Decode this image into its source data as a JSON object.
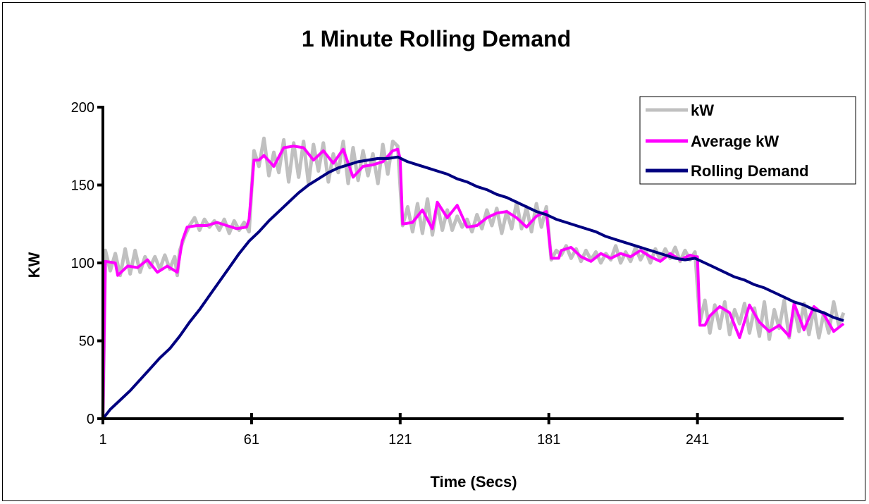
{
  "chart_data": {
    "type": "line",
    "title": "1 Minute Rolling Demand",
    "xlabel": "Time (Secs)",
    "ylabel": "KW",
    "xlim": [
      1,
      300
    ],
    "ylim": [
      0,
      200
    ],
    "x_ticks": [
      1,
      61,
      121,
      181,
      241
    ],
    "y_ticks": [
      0,
      50,
      100,
      150,
      200
    ],
    "grid": false,
    "legend_position": "top-right",
    "series": [
      {
        "name": "kW",
        "color": "#c0c0c0",
        "points": [
          [
            1,
            0
          ],
          [
            2,
            108
          ],
          [
            4,
            95
          ],
          [
            6,
            106
          ],
          [
            8,
            92
          ],
          [
            10,
            109
          ],
          [
            12,
            93
          ],
          [
            14,
            108
          ],
          [
            16,
            94
          ],
          [
            18,
            104
          ],
          [
            20,
            97
          ],
          [
            22,
            104
          ],
          [
            24,
            96
          ],
          [
            26,
            105
          ],
          [
            28,
            96
          ],
          [
            30,
            104
          ],
          [
            31,
            92
          ],
          [
            32,
            108
          ],
          [
            34,
            117
          ],
          [
            36,
            124
          ],
          [
            38,
            129
          ],
          [
            40,
            121
          ],
          [
            42,
            128
          ],
          [
            44,
            123
          ],
          [
            46,
            127
          ],
          [
            48,
            121
          ],
          [
            50,
            128
          ],
          [
            52,
            119
          ],
          [
            54,
            127
          ],
          [
            56,
            121
          ],
          [
            58,
            126
          ],
          [
            60,
            120
          ],
          [
            62,
            172
          ],
          [
            64,
            162
          ],
          [
            66,
            180
          ],
          [
            68,
            156
          ],
          [
            70,
            171
          ],
          [
            72,
            158
          ],
          [
            74,
            179
          ],
          [
            76,
            152
          ],
          [
            78,
            177
          ],
          [
            80,
            155
          ],
          [
            82,
            178
          ],
          [
            84,
            151
          ],
          [
            86,
            176
          ],
          [
            88,
            159
          ],
          [
            90,
            177
          ],
          [
            92,
            152
          ],
          [
            94,
            170
          ],
          [
            96,
            158
          ],
          [
            98,
            178
          ],
          [
            100,
            151
          ],
          [
            102,
            174
          ],
          [
            104,
            153
          ],
          [
            106,
            172
          ],
          [
            108,
            156
          ],
          [
            110,
            170
          ],
          [
            112,
            151
          ],
          [
            114,
            176
          ],
          [
            116,
            157
          ],
          [
            118,
            178
          ],
          [
            120,
            175
          ],
          [
            122,
            124
          ],
          [
            124,
            136
          ],
          [
            126,
            120
          ],
          [
            128,
            138
          ],
          [
            130,
            119
          ],
          [
            132,
            141
          ],
          [
            134,
            118
          ],
          [
            136,
            138
          ],
          [
            138,
            121
          ],
          [
            140,
            134
          ],
          [
            142,
            121
          ],
          [
            144,
            130
          ],
          [
            146,
            123
          ],
          [
            148,
            128
          ],
          [
            150,
            120
          ],
          [
            152,
            131
          ],
          [
            154,
            122
          ],
          [
            156,
            134
          ],
          [
            158,
            124
          ],
          [
            160,
            135
          ],
          [
            162,
            119
          ],
          [
            164,
            133
          ],
          [
            166,
            122
          ],
          [
            168,
            139
          ],
          [
            170,
            122
          ],
          [
            172,
            136
          ],
          [
            174,
            120
          ],
          [
            176,
            138
          ],
          [
            178,
            123
          ],
          [
            180,
            136
          ],
          [
            182,
            102
          ],
          [
            184,
            108
          ],
          [
            186,
            105
          ],
          [
            188,
            111
          ],
          [
            190,
            103
          ],
          [
            192,
            109
          ],
          [
            194,
            101
          ],
          [
            196,
            108
          ],
          [
            198,
            102
          ],
          [
            200,
            107
          ],
          [
            202,
            100
          ],
          [
            204,
            106
          ],
          [
            206,
            102
          ],
          [
            208,
            111
          ],
          [
            210,
            100
          ],
          [
            212,
            107
          ],
          [
            214,
            101
          ],
          [
            216,
            110
          ],
          [
            218,
            102
          ],
          [
            220,
            108
          ],
          [
            222,
            100
          ],
          [
            224,
            109
          ],
          [
            226,
            102
          ],
          [
            228,
            109
          ],
          [
            230,
            103
          ],
          [
            232,
            110
          ],
          [
            234,
            101
          ],
          [
            236,
            108
          ],
          [
            238,
            102
          ],
          [
            240,
            107
          ],
          [
            242,
            62
          ],
          [
            244,
            76
          ],
          [
            246,
            55
          ],
          [
            248,
            73
          ],
          [
            250,
            58
          ],
          [
            252,
            75
          ],
          [
            254,
            54
          ],
          [
            256,
            70
          ],
          [
            258,
            61
          ],
          [
            260,
            74
          ],
          [
            262,
            55
          ],
          [
            264,
            71
          ],
          [
            266,
            53
          ],
          [
            268,
            75
          ],
          [
            270,
            51
          ],
          [
            272,
            70
          ],
          [
            274,
            58
          ],
          [
            276,
            76
          ],
          [
            278,
            52
          ],
          [
            280,
            72
          ],
          [
            282,
            56
          ],
          [
            284,
            74
          ],
          [
            286,
            54
          ],
          [
            288,
            71
          ],
          [
            290,
            52
          ],
          [
            292,
            68
          ],
          [
            294,
            55
          ],
          [
            296,
            75
          ],
          [
            298,
            60
          ],
          [
            300,
            68
          ]
        ]
      },
      {
        "name": "Average kW",
        "color": "#ff00ff",
        "points": [
          [
            1,
            0
          ],
          [
            2,
            101
          ],
          [
            6,
            100
          ],
          [
            7,
            92
          ],
          [
            11,
            98
          ],
          [
            15,
            97
          ],
          [
            19,
            102
          ],
          [
            23,
            94
          ],
          [
            27,
            98
          ],
          [
            31,
            94
          ],
          [
            33,
            114
          ],
          [
            35,
            123
          ],
          [
            39,
            124
          ],
          [
            43,
            124
          ],
          [
            47,
            126
          ],
          [
            51,
            124
          ],
          [
            55,
            122
          ],
          [
            59,
            123
          ],
          [
            60,
            128
          ],
          [
            62,
            166
          ],
          [
            64,
            166
          ],
          [
            66,
            169
          ],
          [
            70,
            162
          ],
          [
            74,
            174
          ],
          [
            78,
            175
          ],
          [
            82,
            174
          ],
          [
            86,
            166
          ],
          [
            90,
            172
          ],
          [
            94,
            164
          ],
          [
            98,
            173
          ],
          [
            102,
            155
          ],
          [
            106,
            162
          ],
          [
            110,
            163
          ],
          [
            114,
            165
          ],
          [
            118,
            172
          ],
          [
            120,
            173
          ],
          [
            121,
            167
          ],
          [
            122,
            125
          ],
          [
            126,
            126
          ],
          [
            130,
            134
          ],
          [
            134,
            122
          ],
          [
            136,
            139
          ],
          [
            140,
            129
          ],
          [
            144,
            137
          ],
          [
            148,
            123
          ],
          [
            152,
            124
          ],
          [
            156,
            129
          ],
          [
            160,
            132
          ],
          [
            164,
            133
          ],
          [
            168,
            129
          ],
          [
            172,
            123
          ],
          [
            176,
            130
          ],
          [
            180,
            133
          ],
          [
            182,
            103
          ],
          [
            185,
            103
          ],
          [
            186,
            108
          ],
          [
            190,
            110
          ],
          [
            194,
            104
          ],
          [
            198,
            101
          ],
          [
            202,
            106
          ],
          [
            206,
            103
          ],
          [
            210,
            106
          ],
          [
            214,
            104
          ],
          [
            218,
            108
          ],
          [
            222,
            104
          ],
          [
            226,
            101
          ],
          [
            230,
            106
          ],
          [
            234,
            102
          ],
          [
            238,
            105
          ],
          [
            240,
            104
          ],
          [
            241,
            104
          ],
          [
            242,
            60
          ],
          [
            244,
            60
          ],
          [
            246,
            66
          ],
          [
            250,
            72
          ],
          [
            254,
            68
          ],
          [
            258,
            52
          ],
          [
            262,
            73
          ],
          [
            266,
            62
          ],
          [
            270,
            56
          ],
          [
            274,
            60
          ],
          [
            278,
            53
          ],
          [
            280,
            74
          ],
          [
            284,
            57
          ],
          [
            288,
            72
          ],
          [
            292,
            67
          ],
          [
            296,
            56
          ],
          [
            300,
            61
          ]
        ]
      },
      {
        "name": "Rolling Demand",
        "color": "#000080",
        "points": [
          [
            1,
            0
          ],
          [
            2,
            2
          ],
          [
            4,
            6
          ],
          [
            8,
            12
          ],
          [
            12,
            18
          ],
          [
            16,
            25
          ],
          [
            20,
            32
          ],
          [
            24,
            39
          ],
          [
            28,
            45
          ],
          [
            32,
            53
          ],
          [
            36,
            62
          ],
          [
            40,
            70
          ],
          [
            44,
            79
          ],
          [
            48,
            88
          ],
          [
            52,
            97
          ],
          [
            56,
            106
          ],
          [
            60,
            114
          ],
          [
            64,
            120
          ],
          [
            68,
            127
          ],
          [
            72,
            133
          ],
          [
            76,
            139
          ],
          [
            80,
            145
          ],
          [
            84,
            150
          ],
          [
            88,
            154
          ],
          [
            92,
            158
          ],
          [
            96,
            161
          ],
          [
            100,
            163
          ],
          [
            104,
            165
          ],
          [
            108,
            166
          ],
          [
            112,
            167
          ],
          [
            116,
            167
          ],
          [
            120,
            168
          ],
          [
            124,
            165
          ],
          [
            128,
            163
          ],
          [
            132,
            161
          ],
          [
            136,
            159
          ],
          [
            140,
            157
          ],
          [
            144,
            154
          ],
          [
            148,
            152
          ],
          [
            152,
            149
          ],
          [
            156,
            147
          ],
          [
            160,
            144
          ],
          [
            164,
            142
          ],
          [
            168,
            139
          ],
          [
            172,
            136
          ],
          [
            176,
            133
          ],
          [
            180,
            131
          ],
          [
            184,
            128
          ],
          [
            188,
            126
          ],
          [
            192,
            124
          ],
          [
            196,
            122
          ],
          [
            200,
            120
          ],
          [
            204,
            117
          ],
          [
            208,
            115
          ],
          [
            212,
            113
          ],
          [
            216,
            111
          ],
          [
            220,
            109
          ],
          [
            224,
            107
          ],
          [
            228,
            105
          ],
          [
            232,
            103
          ],
          [
            236,
            102
          ],
          [
            240,
            103
          ],
          [
            244,
            100
          ],
          [
            248,
            97
          ],
          [
            252,
            94
          ],
          [
            256,
            91
          ],
          [
            260,
            89
          ],
          [
            264,
            86
          ],
          [
            268,
            84
          ],
          [
            272,
            81
          ],
          [
            276,
            78
          ],
          [
            280,
            75
          ],
          [
            284,
            73
          ],
          [
            288,
            70
          ],
          [
            292,
            68
          ],
          [
            296,
            65
          ],
          [
            300,
            63
          ]
        ]
      }
    ]
  }
}
